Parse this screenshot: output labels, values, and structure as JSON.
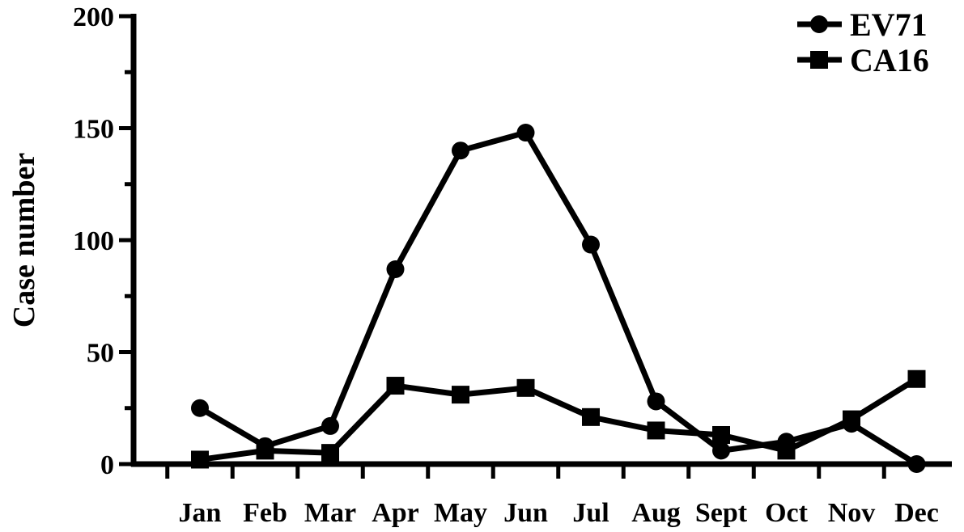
{
  "chart_data": {
    "type": "line",
    "title": "",
    "xlabel": "",
    "ylabel": "Case number",
    "ylim": [
      0,
      200
    ],
    "yticks": [
      0,
      50,
      100,
      150,
      200
    ],
    "grid": false,
    "legend_position": "top-right",
    "categories": [
      "Jan",
      "Feb",
      "Mar",
      "Apr",
      "May",
      "Jun",
      "Jul",
      "Aug",
      "Sept",
      "Oct",
      "Nov",
      "Dec"
    ],
    "series": [
      {
        "name": "EV71",
        "marker": "circle",
        "color": "#000000",
        "values": [
          25,
          8,
          17,
          87,
          140,
          148,
          98,
          28,
          6,
          10,
          18,
          0
        ]
      },
      {
        "name": "CA16",
        "marker": "square",
        "color": "#000000",
        "values": [
          2,
          6,
          5,
          35,
          31,
          34,
          21,
          15,
          13,
          6,
          20,
          38
        ]
      }
    ]
  }
}
